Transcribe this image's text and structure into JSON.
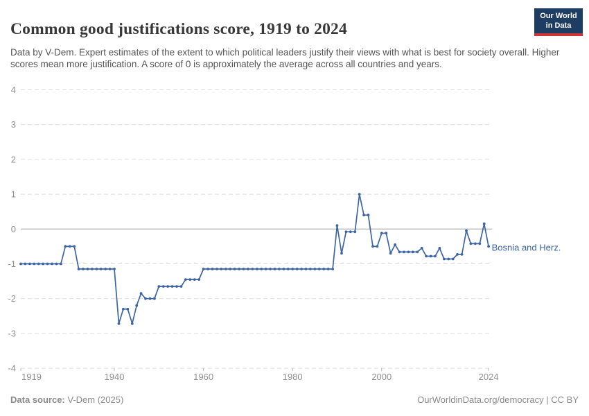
{
  "header": {
    "title": "Common good justifications score, 1919 to 2024",
    "subtitle": "Data by V-Dem. Expert estimates of the extent to which political leaders justify their views with what is best for society overall. Higher scores mean more justification. A score of 0 is approximately the average across all countries and years."
  },
  "logo": {
    "line1": "Our World",
    "line2": "in Data",
    "bg_color": "#1d3d63",
    "bar_color": "#cf3438"
  },
  "footer": {
    "source_label": "Data source:",
    "source_value": " V-Dem (2025)",
    "rights_link": "OurWorldinData.org/democracy",
    "rights_suffix": " | CC BY"
  },
  "chart_data": {
    "type": "line",
    "title": "Common good justifications score, 1919 to 2024",
    "xlabel": "",
    "ylabel": "",
    "ylim": [
      -4,
      4
    ],
    "yticks": [
      4,
      3,
      2,
      1,
      0,
      -1,
      -2,
      -3,
      -4
    ],
    "xticks": [
      1919,
      1940,
      1960,
      1980,
      2000,
      2024
    ],
    "grid": "dashed-horizontal",
    "zero_line": true,
    "legend_position": "end-of-line-label",
    "line_color": "#3d64a4",
    "axis_label_color": "#8f8f8f",
    "x_start": 1919,
    "x_step": 1,
    "x_end": 2024,
    "series": [
      {
        "name": "Bosnia and Herz.",
        "values": [
          -1.0,
          -1.0,
          -1.0,
          -1.0,
          -1.0,
          -1.0,
          -1.0,
          -1.0,
          -1.0,
          -1.0,
          -0.5,
          -0.5,
          -0.5,
          -1.15,
          -1.15,
          -1.15,
          -1.15,
          -1.15,
          -1.15,
          -1.15,
          -1.15,
          -1.15,
          -2.72,
          -2.3,
          -2.3,
          -2.72,
          -2.2,
          -1.85,
          -2.0,
          -2.0,
          -2.0,
          -1.65,
          -1.65,
          -1.65,
          -1.65,
          -1.65,
          -1.65,
          -1.45,
          -1.45,
          -1.45,
          -1.45,
          -1.15,
          -1.15,
          -1.15,
          -1.15,
          -1.15,
          -1.15,
          -1.15,
          -1.15,
          -1.15,
          -1.15,
          -1.15,
          -1.15,
          -1.15,
          -1.15,
          -1.15,
          -1.15,
          -1.15,
          -1.15,
          -1.15,
          -1.15,
          -1.15,
          -1.15,
          -1.15,
          -1.15,
          -1.15,
          -1.15,
          -1.15,
          -1.15,
          -1.15,
          -1.15,
          0.1,
          -0.7,
          -0.08,
          -0.08,
          -0.08,
          1.0,
          0.4,
          0.4,
          -0.5,
          -0.5,
          -0.12,
          -0.12,
          -0.7,
          -0.45,
          -0.66,
          -0.66,
          -0.66,
          -0.66,
          -0.66,
          -0.55,
          -0.78,
          -0.78,
          -0.78,
          -0.55,
          -0.86,
          -0.86,
          -0.86,
          -0.73,
          -0.73,
          -0.05,
          -0.42,
          -0.42,
          -0.42,
          0.15,
          -0.5
        ]
      }
    ]
  }
}
